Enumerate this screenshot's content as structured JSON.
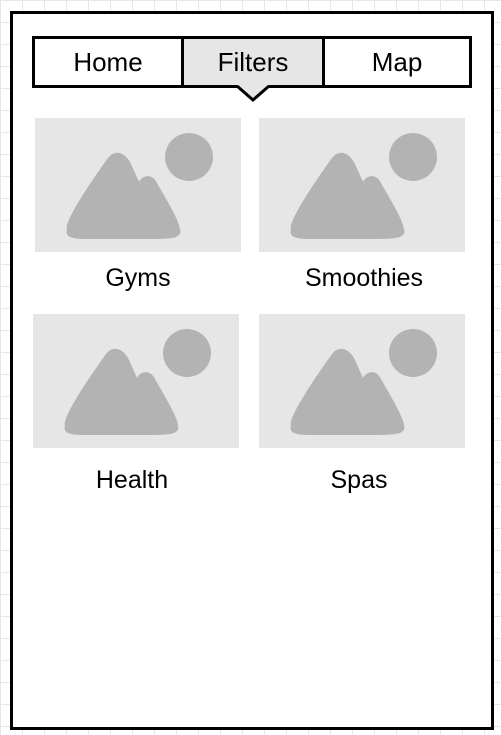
{
  "tabs": {
    "home": "Home",
    "filters": "Filters",
    "map": "Map"
  },
  "active_tab": "Filters",
  "categories": [
    {
      "label": "Gyms",
      "image": "image-placeholder-icon"
    },
    {
      "label": "Smoothies",
      "image": "image-placeholder-icon"
    },
    {
      "label": "Health",
      "image": "image-placeholder-icon"
    },
    {
      "label": "Spas",
      "image": "image-placeholder-icon"
    }
  ],
  "colors": {
    "frame": "#000000",
    "active_tab_bg": "#e6e6e6",
    "placeholder_bg": "#e6e6e6",
    "placeholder_icon": "#b3b3b3"
  }
}
